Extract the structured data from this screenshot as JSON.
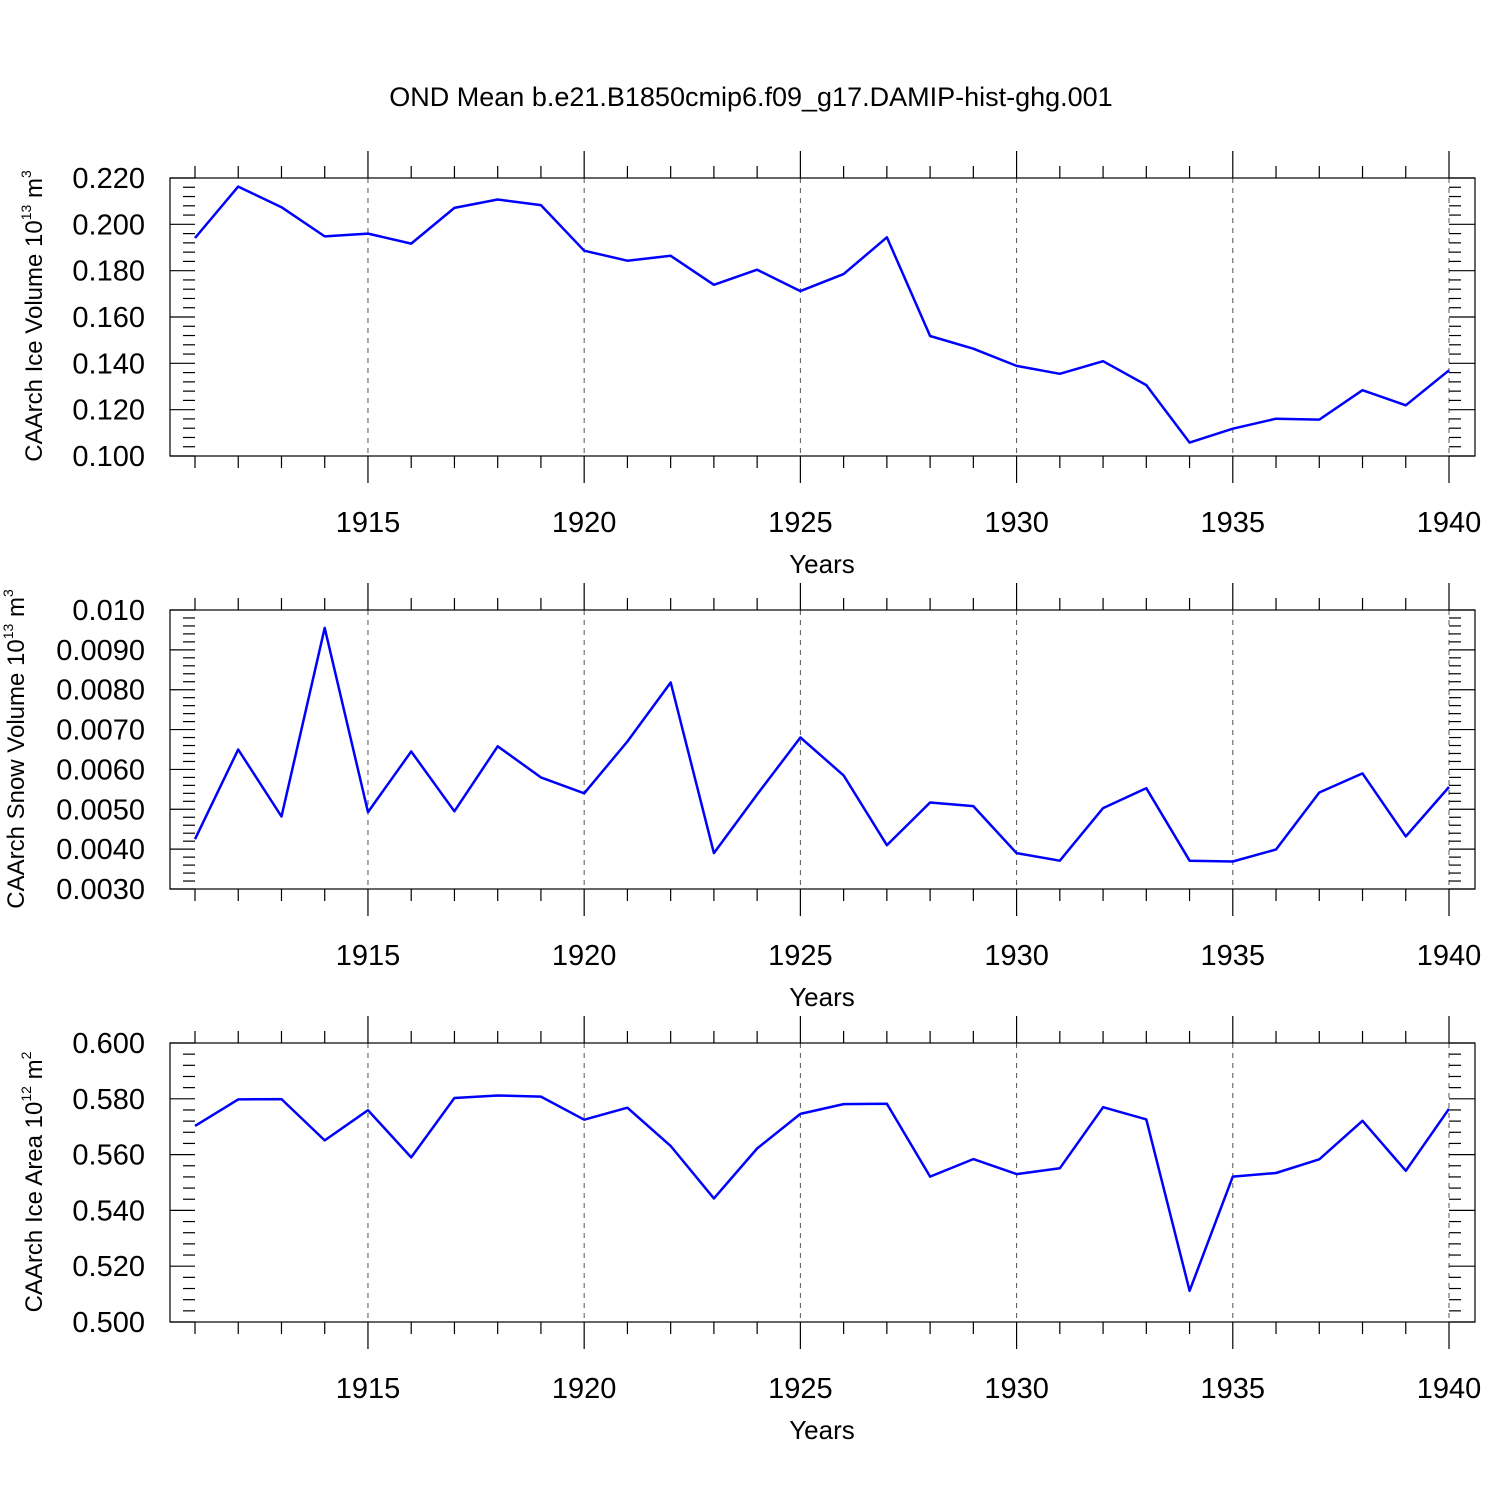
{
  "title": "OND Mean b.e21.B1850cmip6.f09_g17.DAMIP-hist-ghg.001",
  "colors": {
    "line": "#0000ff",
    "frame": "#000000",
    "grid": "#555555"
  },
  "chart_data": [
    {
      "type": "line",
      "ylabel": {
        "base": "CAArch Ice Volume 10",
        "exp": "13",
        "unit": " m",
        "unit_exp": "3"
      },
      "xlabel": "Years",
      "xlim": [
        1911,
        1940
      ],
      "ylim": [
        0.1,
        0.22
      ],
      "yticks": [
        "0.100",
        "0.120",
        "0.140",
        "0.160",
        "0.180",
        "0.200",
        "0.220"
      ],
      "xticks": [
        "1915",
        "1920",
        "1925",
        "1930",
        "1935",
        "1940"
      ],
      "grid": "vertical dashed at major x ticks",
      "x": [
        1911,
        1912,
        1913,
        1914,
        1915,
        1916,
        1917,
        1918,
        1919,
        1920,
        1921,
        1922,
        1923,
        1924,
        1925,
        1926,
        1927,
        1928,
        1929,
        1930,
        1931,
        1932,
        1933,
        1934,
        1935,
        1936,
        1937,
        1938,
        1939,
        1940
      ],
      "values": [
        0.1941,
        0.2163,
        0.2074,
        0.1948,
        0.196,
        0.1917,
        0.2071,
        0.2107,
        0.2083,
        0.1886,
        0.1843,
        0.1864,
        0.1739,
        0.1804,
        0.1712,
        0.1785,
        0.1944,
        0.1518,
        0.1463,
        0.1389,
        0.1355,
        0.1409,
        0.1306,
        0.1058,
        0.1118,
        0.1161,
        0.1157,
        0.1284,
        0.1219,
        0.137
      ]
    },
    {
      "type": "line",
      "ylabel": {
        "base": "CAArch Snow Volume 10",
        "exp": "13",
        "unit": " m",
        "unit_exp": "3"
      },
      "xlabel": "Years",
      "xlim": [
        1911,
        1940
      ],
      "ylim": [
        0.003,
        0.01
      ],
      "yticks": [
        "0.0030",
        "0.0040",
        "0.0050",
        "0.0060",
        "0.0070",
        "0.0080",
        "0.0090",
        "0.010"
      ],
      "xticks": [
        "1915",
        "1920",
        "1925",
        "1930",
        "1935",
        "1940"
      ],
      "grid": "vertical dashed at major x ticks",
      "x": [
        1911,
        1912,
        1913,
        1914,
        1915,
        1916,
        1917,
        1918,
        1919,
        1920,
        1921,
        1922,
        1923,
        1924,
        1925,
        1926,
        1927,
        1928,
        1929,
        1930,
        1931,
        1932,
        1933,
        1934,
        1935,
        1936,
        1937,
        1938,
        1939,
        1940
      ],
      "values": [
        0.00425,
        0.0065,
        0.00482,
        0.00955,
        0.00493,
        0.00645,
        0.00495,
        0.00658,
        0.0058,
        0.0054,
        0.0067,
        0.00818,
        0.0039,
        0.00537,
        0.0068,
        0.00585,
        0.0041,
        0.00517,
        0.00508,
        0.0039,
        0.00371,
        0.00503,
        0.00553,
        0.00371,
        0.00369,
        0.00399,
        0.00542,
        0.0059,
        0.00432,
        0.00556
      ]
    },
    {
      "type": "line",
      "ylabel": {
        "base": "CAArch Ice Area 10",
        "exp": "12",
        "unit": " m",
        "unit_exp": "2"
      },
      "xlabel": "Years",
      "xlim": [
        1911,
        1940
      ],
      "ylim": [
        0.5,
        0.6
      ],
      "yticks": [
        "0.500",
        "0.520",
        "0.540",
        "0.560",
        "0.580",
        "0.600"
      ],
      "xticks": [
        "1915",
        "1920",
        "1925",
        "1930",
        "1935",
        "1940"
      ],
      "grid": "vertical dashed at major x ticks",
      "x": [
        1911,
        1912,
        1913,
        1914,
        1915,
        1916,
        1917,
        1918,
        1919,
        1920,
        1921,
        1922,
        1923,
        1924,
        1925,
        1926,
        1927,
        1928,
        1929,
        1930,
        1931,
        1932,
        1933,
        1934,
        1935,
        1936,
        1937,
        1938,
        1939,
        1940
      ],
      "values": [
        0.5703,
        0.5798,
        0.5799,
        0.5651,
        0.5759,
        0.559,
        0.5803,
        0.5812,
        0.5808,
        0.5725,
        0.5768,
        0.5631,
        0.5443,
        0.5622,
        0.5746,
        0.5781,
        0.5782,
        0.5521,
        0.5584,
        0.553,
        0.5551,
        0.577,
        0.5726,
        0.5112,
        0.5521,
        0.5534,
        0.5583,
        0.5721,
        0.5542,
        0.5764
      ]
    }
  ]
}
